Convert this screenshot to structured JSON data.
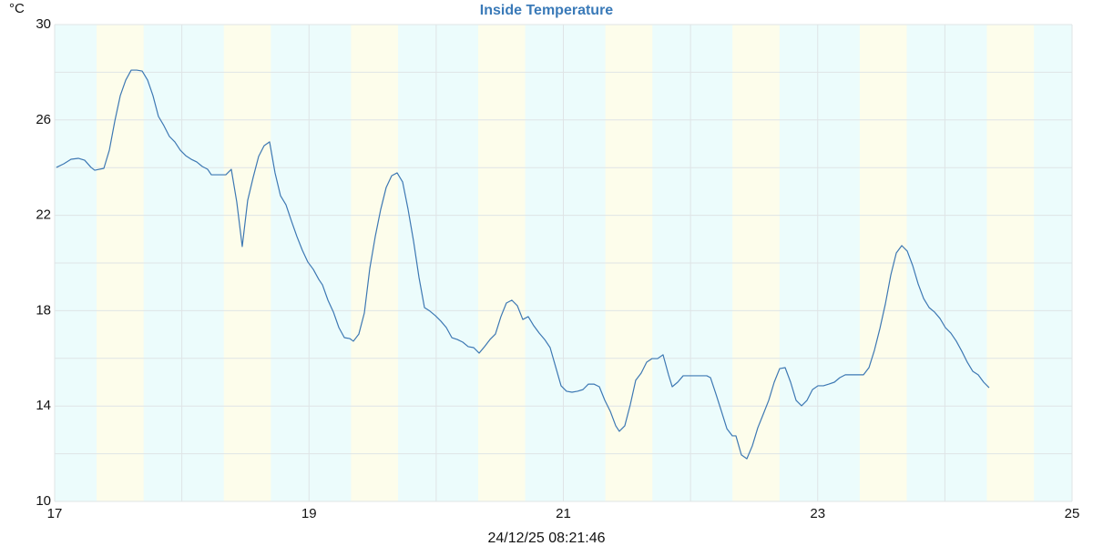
{
  "chart_data": {
    "type": "line",
    "title": "Inside Temperature",
    "y_unit": "°C",
    "footer": "24/12/25 08:21:46",
    "color": "#3d78b3",
    "band_color": "#fdfdeb",
    "plot_background": "#ecfcfc",
    "xlim": [
      17,
      25
    ],
    "ylim": [
      10,
      30
    ],
    "xticks": [
      17,
      19,
      21,
      23,
      25
    ],
    "yticks": [
      10,
      14,
      18,
      22,
      26,
      30
    ],
    "xgrid": [
      17,
      18,
      19,
      20,
      21,
      22,
      23,
      24,
      25
    ],
    "ygrid": [
      10,
      12,
      14,
      16,
      18,
      20,
      22,
      24,
      26,
      28,
      30
    ],
    "shaded_bands": [
      [
        17.33,
        17.7
      ],
      [
        18.33,
        18.7
      ],
      [
        19.33,
        19.7
      ],
      [
        20.33,
        20.7
      ],
      [
        21.33,
        21.7
      ],
      [
        22.33,
        22.7
      ],
      [
        23.33,
        23.7
      ],
      [
        24.33,
        24.7
      ]
    ],
    "x": [
      17.014,
      17.072,
      17.129,
      17.186,
      17.236,
      17.286,
      17.315,
      17.387,
      17.43,
      17.473,
      17.516,
      17.559,
      17.602,
      17.645,
      17.688,
      17.731,
      17.773,
      17.816,
      17.859,
      17.902,
      17.945,
      17.988,
      18.031,
      18.074,
      18.117,
      18.16,
      18.203,
      18.232,
      18.289,
      18.346,
      18.389,
      18.432,
      18.475,
      18.518,
      18.561,
      18.604,
      18.647,
      18.69,
      18.733,
      18.776,
      18.819,
      18.862,
      18.905,
      18.948,
      18.991,
      19.034,
      19.077,
      19.106,
      19.149,
      19.192,
      19.235,
      19.278,
      19.32,
      19.349,
      19.392,
      19.435,
      19.478,
      19.521,
      19.564,
      19.607,
      19.65,
      19.693,
      19.736,
      19.779,
      19.822,
      19.865,
      19.908,
      19.951,
      19.994,
      20.037,
      20.08,
      20.123,
      20.166,
      20.209,
      20.252,
      20.295,
      20.338,
      20.38,
      20.423,
      20.466,
      20.509,
      20.552,
      20.595,
      20.638,
      20.681,
      20.724,
      20.767,
      20.81,
      20.853,
      20.896,
      20.939,
      20.982,
      21.025,
      21.068,
      21.111,
      21.154,
      21.197,
      21.24,
      21.283,
      21.326,
      21.369,
      21.412,
      21.44,
      21.483,
      21.526,
      21.569,
      21.612,
      21.655,
      21.698,
      21.741,
      21.784,
      21.827,
      21.856,
      21.899,
      21.942,
      21.985,
      22.028,
      22.085,
      22.128,
      22.157,
      22.2,
      22.243,
      22.286,
      22.329,
      22.357,
      22.4,
      22.443,
      22.486,
      22.529,
      22.572,
      22.615,
      22.658,
      22.701,
      22.744,
      22.787,
      22.83,
      22.873,
      22.916,
      22.959,
      23.002,
      23.045,
      23.088,
      23.131,
      23.174,
      23.217,
      23.26,
      23.303,
      23.36,
      23.403,
      23.446,
      23.489,
      23.532,
      23.575,
      23.618,
      23.661,
      23.704,
      23.747,
      23.79,
      23.833,
      23.876,
      23.919,
      23.962,
      24.004,
      24.047,
      24.09,
      24.133,
      24.176,
      24.219,
      24.262,
      24.305,
      24.348
    ],
    "values": [
      24.01,
      24.16,
      24.35,
      24.39,
      24.31,
      24.01,
      23.89,
      23.97,
      24.73,
      25.95,
      27.02,
      27.67,
      28.09,
      28.09,
      28.05,
      27.67,
      27.02,
      26.15,
      25.76,
      25.31,
      25.08,
      24.73,
      24.5,
      24.35,
      24.24,
      24.05,
      23.93,
      23.7,
      23.7,
      23.7,
      23.93,
      22.56,
      20.69,
      22.63,
      23.59,
      24.47,
      24.92,
      25.08,
      23.78,
      22.82,
      22.44,
      21.76,
      21.11,
      20.53,
      20.04,
      19.73,
      19.31,
      19.08,
      18.44,
      17.94,
      17.29,
      16.87,
      16.83,
      16.72,
      17.02,
      17.9,
      19.77,
      21.11,
      22.25,
      23.17,
      23.66,
      23.78,
      23.4,
      22.25,
      20.92,
      19.39,
      18.13,
      17.98,
      17.79,
      17.56,
      17.29,
      16.87,
      16.79,
      16.68,
      16.49,
      16.45,
      16.22,
      16.49,
      16.79,
      17.02,
      17.75,
      18.32,
      18.44,
      18.21,
      17.63,
      17.75,
      17.37,
      17.06,
      16.79,
      16.45,
      15.65,
      14.85,
      14.62,
      14.58,
      14.62,
      14.69,
      14.92,
      14.92,
      14.81,
      14.24,
      13.78,
      13.17,
      12.94,
      13.17,
      14.05,
      15.08,
      15.38,
      15.84,
      15.99,
      15.99,
      16.15,
      15.31,
      14.81,
      15.0,
      15.27,
      15.27,
      15.27,
      15.27,
      15.27,
      15.19,
      14.5,
      13.78,
      13.05,
      12.75,
      12.75,
      11.95,
      11.79,
      12.33,
      13.09,
      13.66,
      14.24,
      15.0,
      15.57,
      15.61,
      15.0,
      14.24,
      14.01,
      14.24,
      14.69,
      14.85,
      14.85,
      14.92,
      15.0,
      15.19,
      15.31,
      15.31,
      15.31,
      15.31,
      15.61,
      16.34,
      17.25,
      18.28,
      19.5,
      20.42,
      20.73,
      20.5,
      19.89,
      19.12,
      18.51,
      18.13,
      17.94,
      17.67,
      17.29,
      17.06,
      16.72,
      16.3,
      15.84,
      15.46,
      15.31,
      15.0,
      14.77
    ]
  }
}
